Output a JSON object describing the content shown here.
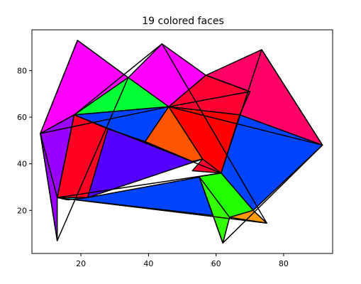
{
  "chart_data": {
    "type": "polygon-faces",
    "title": "19 colored faces",
    "xlabel": "",
    "ylabel": "",
    "xlim": [
      5.5,
      94.5
    ],
    "ylim": [
      1.5,
      97.5
    ],
    "xticks": [
      20,
      40,
      60,
      80
    ],
    "yticks": [
      20,
      40,
      60,
      80
    ],
    "grid": false,
    "faces": [
      {
        "color": "#ff00ff",
        "points": [
          [
            19,
            93
          ],
          [
            8,
            53
          ],
          [
            18,
            61
          ],
          [
            34,
            77
          ]
        ]
      },
      {
        "color": "#ff00ff",
        "points": [
          [
            44,
            91.5
          ],
          [
            34,
            77
          ],
          [
            46,
            64.5
          ],
          [
            57,
            78
          ]
        ]
      },
      {
        "color": "#00ff33",
        "points": [
          [
            34,
            77
          ],
          [
            18,
            61
          ],
          [
            46,
            64.5
          ]
        ]
      },
      {
        "color": "#ff0066",
        "points": [
          [
            73.5,
            89
          ],
          [
            57,
            78
          ],
          [
            70,
            71
          ],
          [
            67,
            61
          ],
          [
            91.5,
            48
          ]
        ]
      },
      {
        "color": "#ff0033",
        "points": [
          [
            57,
            78
          ],
          [
            70,
            71
          ],
          [
            67,
            61
          ],
          [
            46,
            64.5
          ]
        ]
      },
      {
        "color": "#0044ff",
        "points": [
          [
            18,
            61
          ],
          [
            46,
            64.5
          ],
          [
            39,
            49.5
          ],
          [
            28,
            55
          ]
        ]
      },
      {
        "color": "#ff0000",
        "points": [
          [
            46,
            64.5
          ],
          [
            67,
            61
          ],
          [
            61.5,
            36
          ],
          [
            56,
            42
          ]
        ]
      },
      {
        "color": "#ff5500",
        "points": [
          [
            46,
            64.5
          ],
          [
            39,
            49.5
          ],
          [
            53,
            41
          ],
          [
            56,
            42
          ]
        ]
      },
      {
        "color": "#9900ff",
        "points": [
          [
            8,
            53
          ],
          [
            18,
            61
          ],
          [
            13,
            25.5
          ]
        ]
      },
      {
        "color": "#ff0022",
        "points": [
          [
            18,
            61
          ],
          [
            28,
            55
          ],
          [
            22,
            25.5
          ],
          [
            13,
            25.5
          ]
        ]
      },
      {
        "color": "#0044ff",
        "points": [
          [
            67,
            61
          ],
          [
            91.5,
            48
          ],
          [
            71,
            20
          ],
          [
            61.5,
            36
          ]
        ]
      },
      {
        "color": "#9900ff",
        "points": [
          [
            8,
            53
          ],
          [
            13,
            25.5
          ],
          [
            13,
            7
          ]
        ]
      },
      {
        "color": "#5500ff",
        "points": [
          [
            28,
            55
          ],
          [
            39,
            49.5
          ],
          [
            53,
            41
          ],
          [
            56,
            42
          ],
          [
            22,
            25.5
          ]
        ]
      },
      {
        "color": "#ff0033",
        "points": [
          [
            56,
            42
          ],
          [
            61.5,
            36
          ],
          [
            53,
            37
          ]
        ]
      },
      {
        "color": "#0044ff",
        "points": [
          [
            13,
            25.5
          ],
          [
            22,
            25.5
          ],
          [
            61.5,
            36
          ],
          [
            71,
            20
          ],
          [
            64,
            17
          ]
        ]
      },
      {
        "color": "#22ccff",
        "points": [
          [
            13,
            25.5
          ],
          [
            22,
            25.5
          ],
          [
            16,
            24.5
          ]
        ]
      },
      {
        "color": "#22ff00",
        "points": [
          [
            55,
            34.5
          ],
          [
            61.5,
            36
          ],
          [
            71,
            20
          ],
          [
            64,
            17
          ],
          [
            62,
            6
          ]
        ]
      },
      {
        "color": "#ff9900",
        "points": [
          [
            64,
            17
          ],
          [
            71,
            20
          ],
          [
            75,
            14.5
          ]
        ]
      },
      {
        "color": "#33ff00",
        "points": [
          [
            55,
            34.5
          ],
          [
            64,
            17
          ],
          [
            62,
            6
          ]
        ]
      }
    ],
    "outline": [
      [
        [
          19,
          93
        ],
        [
          8,
          53
        ],
        [
          13,
          7
        ],
        [
          34,
          77
        ],
        [
          19,
          93
        ]
      ],
      [
        [
          44,
          91.5
        ],
        [
          18,
          61
        ],
        [
          13,
          25.5
        ],
        [
          75,
          14.5
        ],
        [
          44,
          91.5
        ]
      ],
      [
        [
          73.5,
          89
        ],
        [
          91.5,
          48
        ],
        [
          62,
          6
        ],
        [
          55,
          34.5
        ]
      ],
      [
        [
          8,
          53
        ],
        [
          46,
          64.5
        ],
        [
          91.5,
          48
        ]
      ],
      [
        [
          13,
          25.5
        ],
        [
          61.5,
          36
        ],
        [
          73.5,
          89
        ]
      ],
      [
        [
          18,
          61
        ],
        [
          61.5,
          36
        ]
      ],
      [
        [
          46,
          64.5
        ],
        [
          70,
          71
        ],
        [
          57,
          78
        ]
      ]
    ]
  }
}
